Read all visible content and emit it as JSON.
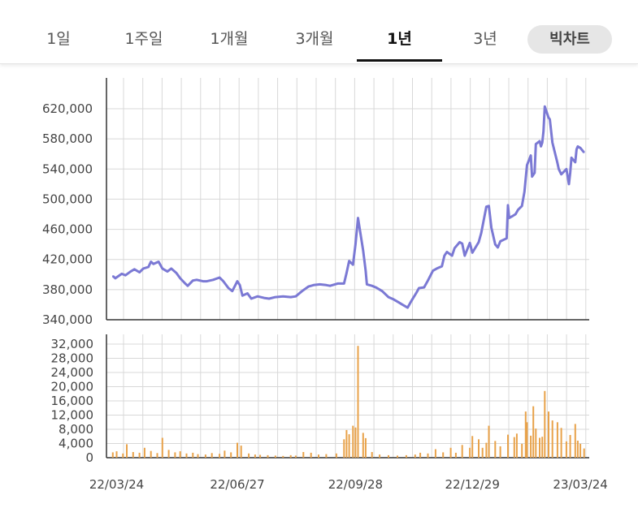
{
  "tabs": [
    {
      "label": "1일"
    },
    {
      "label": "1주일"
    },
    {
      "label": "1개월"
    },
    {
      "label": "3개월"
    },
    {
      "label": "1년",
      "active": true
    },
    {
      "label": "3년"
    }
  ],
  "pill_label": "빅차트",
  "colors": {
    "price_line": "#7b79d4",
    "volume_bar": "#e8a24a",
    "grid": "#d8d8d8",
    "axis": "#333333"
  },
  "chart_data": [
    {
      "type": "line",
      "name": "price",
      "ylim": [
        340000,
        640000
      ],
      "yticks": [
        "620,000",
        "580,000",
        "540,000",
        "500,000",
        "460,000",
        "420,000",
        "380,000",
        "340,000"
      ],
      "ytick_values": [
        620000,
        580000,
        540000,
        500000,
        460000,
        420000,
        380000,
        340000
      ],
      "x_range": [
        "2022-03-16",
        "2023-03-31"
      ],
      "xtick_labels": [
        "22/03/24",
        "22/06/27",
        "22/09/28",
        "22/12/29",
        "23/03/24"
      ],
      "xtick_dates": [
        "2022-03-24",
        "2022-06-27",
        "2022-09-28",
        "2022-12-29",
        "2023-03-24"
      ],
      "grid": true,
      "points": [
        [
          "2022-03-21",
          398000
        ],
        [
          "2022-03-23",
          395000
        ],
        [
          "2022-03-28",
          401000
        ],
        [
          "2022-03-31",
          399000
        ],
        [
          "2022-04-04",
          404000
        ],
        [
          "2022-04-07",
          407000
        ],
        [
          "2022-04-11",
          403000
        ],
        [
          "2022-04-14",
          408000
        ],
        [
          "2022-04-18",
          410000
        ],
        [
          "2022-04-20",
          417000
        ],
        [
          "2022-04-22",
          414000
        ],
        [
          "2022-04-26",
          417000
        ],
        [
          "2022-04-29",
          408000
        ],
        [
          "2022-05-03",
          404000
        ],
        [
          "2022-05-06",
          408000
        ],
        [
          "2022-05-10",
          402000
        ],
        [
          "2022-05-13",
          395000
        ],
        [
          "2022-05-17",
          388000
        ],
        [
          "2022-05-19",
          385000
        ],
        [
          "2022-05-23",
          392000
        ],
        [
          "2022-05-26",
          393000
        ],
        [
          "2022-05-31",
          391000
        ],
        [
          "2022-06-03",
          391000
        ],
        [
          "2022-06-08",
          393000
        ],
        [
          "2022-06-13",
          396000
        ],
        [
          "2022-06-16",
          391000
        ],
        [
          "2022-06-20",
          382000
        ],
        [
          "2022-06-23",
          378000
        ],
        [
          "2022-06-27",
          391000
        ],
        [
          "2022-06-29",
          386000
        ],
        [
          "2022-07-01",
          372000
        ],
        [
          "2022-07-05",
          375000
        ],
        [
          "2022-07-08",
          368000
        ],
        [
          "2022-07-13",
          371000
        ],
        [
          "2022-07-18",
          369000
        ],
        [
          "2022-07-22",
          368000
        ],
        [
          "2022-07-27",
          370000
        ],
        [
          "2022-08-02",
          371000
        ],
        [
          "2022-08-08",
          370000
        ],
        [
          "2022-08-12",
          371000
        ],
        [
          "2022-08-17",
          378000
        ],
        [
          "2022-08-22",
          384000
        ],
        [
          "2022-08-26",
          386000
        ],
        [
          "2022-08-31",
          387000
        ],
        [
          "2022-09-05",
          386000
        ],
        [
          "2022-09-08",
          385000
        ],
        [
          "2022-09-14",
          388000
        ],
        [
          "2022-09-19",
          388000
        ],
        [
          "2022-09-21",
          402000
        ],
        [
          "2022-09-23",
          418000
        ],
        [
          "2022-09-26",
          413000
        ],
        [
          "2022-09-28",
          440000
        ],
        [
          "2022-09-30",
          475000
        ],
        [
          "2022-10-04",
          432000
        ],
        [
          "2022-10-06",
          405000
        ],
        [
          "2022-10-07",
          387000
        ],
        [
          "2022-10-11",
          385000
        ],
        [
          "2022-10-14",
          383000
        ],
        [
          "2022-10-19",
          378000
        ],
        [
          "2022-10-24",
          370000
        ],
        [
          "2022-10-28",
          367000
        ],
        [
          "2022-11-01",
          363000
        ],
        [
          "2022-11-04",
          360000
        ],
        [
          "2022-11-08",
          356000
        ],
        [
          "2022-11-11",
          365000
        ],
        [
          "2022-11-15",
          376000
        ],
        [
          "2022-11-17",
          382000
        ],
        [
          "2022-11-21",
          383000
        ],
        [
          "2022-11-24",
          392000
        ],
        [
          "2022-11-28",
          405000
        ],
        [
          "2022-12-01",
          408000
        ],
        [
          "2022-12-05",
          411000
        ],
        [
          "2022-12-07",
          425000
        ],
        [
          "2022-12-09",
          430000
        ],
        [
          "2022-12-13",
          425000
        ],
        [
          "2022-12-15",
          435000
        ],
        [
          "2022-12-19",
          443000
        ],
        [
          "2022-12-21",
          441000
        ],
        [
          "2022-12-23",
          425000
        ],
        [
          "2022-12-27",
          442000
        ],
        [
          "2022-12-29",
          429000
        ],
        [
          "2023-01-03",
          443000
        ],
        [
          "2023-01-05",
          455000
        ],
        [
          "2023-01-09",
          490000
        ],
        [
          "2023-01-11",
          491000
        ],
        [
          "2023-01-13",
          462000
        ],
        [
          "2023-01-16",
          440000
        ],
        [
          "2023-01-18",
          436000
        ],
        [
          "2023-01-20",
          444000
        ],
        [
          "2023-01-25",
          448000
        ],
        [
          "2023-01-26",
          492000
        ],
        [
          "2023-01-27",
          475000
        ],
        [
          "2023-01-30",
          478000
        ],
        [
          "2023-02-01",
          480000
        ],
        [
          "2023-02-03",
          486000
        ],
        [
          "2023-02-06",
          491000
        ],
        [
          "2023-02-08",
          510000
        ],
        [
          "2023-02-10",
          545000
        ],
        [
          "2023-02-13",
          558000
        ],
        [
          "2023-02-14",
          530000
        ],
        [
          "2023-02-16",
          535000
        ],
        [
          "2023-02-17",
          573000
        ],
        [
          "2023-02-20",
          577000
        ],
        [
          "2023-02-21",
          570000
        ],
        [
          "2023-02-22",
          575000
        ],
        [
          "2023-02-23",
          590000
        ],
        [
          "2023-02-24",
          623000
        ],
        [
          "2023-02-27",
          608000
        ],
        [
          "2023-02-28",
          606000
        ],
        [
          "2023-03-02",
          575000
        ],
        [
          "2023-03-06",
          548000
        ],
        [
          "2023-03-07",
          540000
        ],
        [
          "2023-03-09",
          533000
        ],
        [
          "2023-03-13",
          540000
        ],
        [
          "2023-03-15",
          520000
        ],
        [
          "2023-03-16",
          535000
        ],
        [
          "2023-03-17",
          555000
        ],
        [
          "2023-03-20",
          549000
        ],
        [
          "2023-03-21",
          566000
        ],
        [
          "2023-03-22",
          570000
        ],
        [
          "2023-03-24",
          568000
        ],
        [
          "2023-03-27",
          562000
        ]
      ]
    },
    {
      "type": "bar",
      "name": "volume",
      "ylim": [
        0,
        34000
      ],
      "yticks": [
        "32,000",
        "28,000",
        "24,000",
        "20,000",
        "16,000",
        "12,000",
        "8,000",
        "4,000",
        "0"
      ],
      "ytick_values": [
        32000,
        28000,
        24000,
        20000,
        16000,
        12000,
        8000,
        4000,
        0
      ],
      "grid": true,
      "bars": [
        [
          "2022-03-21",
          1500
        ],
        [
          "2022-03-24",
          1800
        ],
        [
          "2022-03-29",
          1200
        ],
        [
          "2022-04-01",
          3800
        ],
        [
          "2022-04-06",
          1600
        ],
        [
          "2022-04-11",
          1400
        ],
        [
          "2022-04-15",
          2800
        ],
        [
          "2022-04-20",
          1900
        ],
        [
          "2022-04-25",
          1300
        ],
        [
          "2022-04-29",
          5600
        ],
        [
          "2022-05-04",
          2200
        ],
        [
          "2022-05-09",
          1500
        ],
        [
          "2022-05-13",
          1800
        ],
        [
          "2022-05-18",
          1200
        ],
        [
          "2022-05-23",
          1400
        ],
        [
          "2022-05-27",
          1000
        ],
        [
          "2022-06-02",
          900
        ],
        [
          "2022-06-07",
          1300
        ],
        [
          "2022-06-13",
          1100
        ],
        [
          "2022-06-17",
          2000
        ],
        [
          "2022-06-22",
          1500
        ],
        [
          "2022-06-27",
          4200
        ],
        [
          "2022-06-30",
          3400
        ],
        [
          "2022-07-06",
          1200
        ],
        [
          "2022-07-11",
          900
        ],
        [
          "2022-07-15",
          800
        ],
        [
          "2022-07-21",
          700
        ],
        [
          "2022-07-27",
          600
        ],
        [
          "2022-08-02",
          500
        ],
        [
          "2022-08-08",
          700
        ],
        [
          "2022-08-12",
          600
        ],
        [
          "2022-08-18",
          1600
        ],
        [
          "2022-08-24",
          1400
        ],
        [
          "2022-08-30",
          900
        ],
        [
          "2022-09-05",
          1000
        ],
        [
          "2022-09-13",
          1200
        ],
        [
          "2022-09-19",
          5200
        ],
        [
          "2022-09-21",
          7800
        ],
        [
          "2022-09-23",
          6600
        ],
        [
          "2022-09-26",
          9000
        ],
        [
          "2022-09-28",
          8500
        ],
        [
          "2022-09-30",
          31500
        ],
        [
          "2022-10-04",
          7000
        ],
        [
          "2022-10-06",
          5500
        ],
        [
          "2022-10-11",
          1600
        ],
        [
          "2022-10-17",
          900
        ],
        [
          "2022-10-24",
          700
        ],
        [
          "2022-10-31",
          600
        ],
        [
          "2022-11-07",
          700
        ],
        [
          "2022-11-14",
          900
        ],
        [
          "2022-11-18",
          1400
        ],
        [
          "2022-11-24",
          1200
        ],
        [
          "2022-11-30",
          2400
        ],
        [
          "2022-12-06",
          1500
        ],
        [
          "2022-12-12",
          2800
        ],
        [
          "2022-12-16",
          1400
        ],
        [
          "2022-12-21",
          3600
        ],
        [
          "2022-12-27",
          2800
        ],
        [
          "2022-12-29",
          6100
        ],
        [
          "2023-01-03",
          5200
        ],
        [
          "2023-01-06",
          2800
        ],
        [
          "2023-01-09",
          4200
        ],
        [
          "2023-01-11",
          9000
        ],
        [
          "2023-01-16",
          4700
        ],
        [
          "2023-01-20",
          3200
        ],
        [
          "2023-01-26",
          6500
        ],
        [
          "2023-01-31",
          5800
        ],
        [
          "2023-02-02",
          6800
        ],
        [
          "2023-02-06",
          3900
        ],
        [
          "2023-02-09",
          13000
        ],
        [
          "2023-02-10",
          10000
        ],
        [
          "2023-02-13",
          6200
        ],
        [
          "2023-02-15",
          14500
        ],
        [
          "2023-02-17",
          8200
        ],
        [
          "2023-02-20",
          5600
        ],
        [
          "2023-02-22",
          5900
        ],
        [
          "2023-02-24",
          18800
        ],
        [
          "2023-02-27",
          13000
        ],
        [
          "2023-03-02",
          10500
        ],
        [
          "2023-03-06",
          10000
        ],
        [
          "2023-03-09",
          8400
        ],
        [
          "2023-03-13",
          4600
        ],
        [
          "2023-03-16",
          6400
        ],
        [
          "2023-03-20",
          9500
        ],
        [
          "2023-03-22",
          4800
        ],
        [
          "2023-03-24",
          3900
        ],
        [
          "2023-03-27",
          2600
        ]
      ]
    }
  ]
}
